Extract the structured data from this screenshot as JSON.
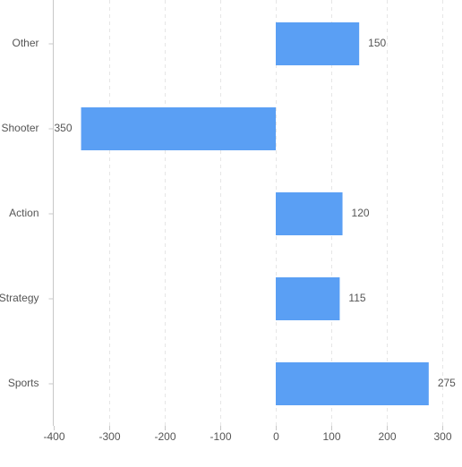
{
  "chart_data": {
    "type": "bar",
    "orientation": "horizontal",
    "categories": [
      "Other",
      "Shooter",
      "Action",
      "Strategy",
      "Sports"
    ],
    "values": [
      150,
      -350,
      120,
      115,
      275
    ],
    "xlim": [
      -400,
      330
    ],
    "xticks": [
      -400,
      -300,
      -200,
      -100,
      0,
      100,
      200,
      300
    ],
    "grid": true,
    "legend": "none",
    "bar_color": "#5a9ff4"
  }
}
